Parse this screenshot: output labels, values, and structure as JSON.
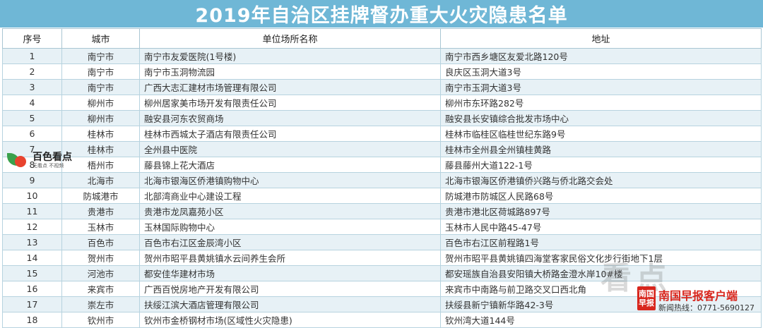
{
  "title": "2019年自治区挂牌督办重大火灾隐患名单",
  "columns": {
    "no": "序号",
    "city": "城市",
    "unit": "单位场所名称",
    "address": "地址"
  },
  "rows": [
    {
      "no": "1",
      "city": "南宁市",
      "unit": "南宁市友爱医院(1号楼)",
      "address": "南宁市西乡塘区友爱北路120号"
    },
    {
      "no": "2",
      "city": "南宁市",
      "unit": "南宁市玉洞物流园",
      "address": "良庆区玉洞大道3号"
    },
    {
      "no": "3",
      "city": "南宁市",
      "unit": "广西大志汇建材市场管理有限公司",
      "address": "南宁市玉洞大道3号"
    },
    {
      "no": "4",
      "city": "柳州市",
      "unit": "柳州居家美市场开发有限责任公司",
      "address": "柳州市东环路282号"
    },
    {
      "no": "5",
      "city": "柳州市",
      "unit": "融安县河东农贸商场",
      "address": "融安县长安镇综合批发市场中心"
    },
    {
      "no": "6",
      "city": "桂林市",
      "unit": "桂林市西城太子酒店有限责任公司",
      "address": "桂林市临桂区临桂世纪东路9号"
    },
    {
      "no": "7",
      "city": "桂林市",
      "unit": "全州县中医院",
      "address": "桂林市全州县全州镇桂黄路"
    },
    {
      "no": "8",
      "city": "梧州市",
      "unit": "藤县锦上花大酒店",
      "address": "藤县藤州大道122-1号"
    },
    {
      "no": "9",
      "city": "北海市",
      "unit": "北海市银海区侨港镇购物中心",
      "address": "北海市银海区侨港镇侨兴路与侨北路交会处"
    },
    {
      "no": "10",
      "city": "防城港市",
      "unit": "北部湾商业中心建设工程",
      "address": "防城港市防城区人民路68号"
    },
    {
      "no": "11",
      "city": "贵港市",
      "unit": "贵港市龙凤嘉苑小区",
      "address": "贵港市港北区荷城路897号"
    },
    {
      "no": "12",
      "city": "玉林市",
      "unit": "玉林国际购物中心",
      "address": "玉林市人民中路45-47号"
    },
    {
      "no": "13",
      "city": "百色市",
      "unit": "百色市右江区金辰湾小区",
      "address": "百色市右江区前程路1号"
    },
    {
      "no": "14",
      "city": "贺州市",
      "unit": "贺州市昭平县黄姚镇水云间养生会所",
      "address": "贺州市昭平县黄姚镇四海堂客家民俗文化步行街地下1层"
    },
    {
      "no": "15",
      "city": "河池市",
      "unit": "都安佳华建材市场",
      "address": "都安瑶族自治县安阳镇大桥路金澄水岸10#楼"
    },
    {
      "no": "16",
      "city": "来宾市",
      "unit": "广西百悦房地产开发有限公司",
      "address": "来宾市中南路与前卫路交叉口西北角"
    },
    {
      "no": "17",
      "city": "崇左市",
      "unit": "扶绥江滨大酒店管理有限公司",
      "address": "扶绥县新宁镇新华路42-3号"
    },
    {
      "no": "18",
      "city": "钦州市",
      "unit": "钦州市金桥钢材市场(区域性火灾隐患)",
      "address": "钦州湾大道144号"
    }
  ],
  "watermark_left": {
    "name": "百色看点",
    "slogan": "无看点 不视频"
  },
  "watermark_right": {
    "ghost_text": "看点",
    "badge": "南国早报",
    "app_name": "南国早报客户端",
    "hotline": "新闻热线：0771-5690127"
  },
  "colors": {
    "title_bg": "#6fb7d6",
    "row_alt": "#e7f1f6",
    "grid": "#b7d3df",
    "brand_red": "#d8261d"
  }
}
